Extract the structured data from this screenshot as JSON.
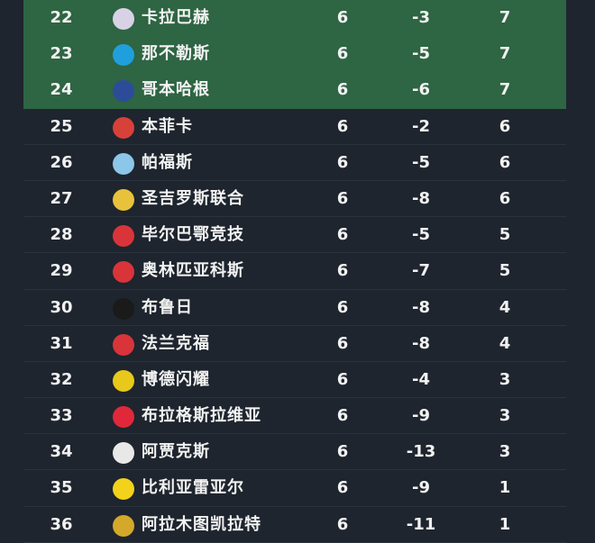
{
  "standings": [
    {
      "rank": "22",
      "team": "卡拉巴赫",
      "played": "6",
      "gd": "-3",
      "pts": "7",
      "highlight": true,
      "logo_color": "#d9d2e6",
      "logo_icon": "qarabag-crest-icon"
    },
    {
      "rank": "23",
      "team": "那不勒斯",
      "played": "6",
      "gd": "-5",
      "pts": "7",
      "highlight": true,
      "logo_color": "#1fa0dc",
      "logo_icon": "napoli-crest-icon"
    },
    {
      "rank": "24",
      "team": "哥本哈根",
      "played": "6",
      "gd": "-6",
      "pts": "7",
      "highlight": true,
      "logo_color": "#2c4c9a",
      "logo_icon": "copenhagen-crest-icon"
    },
    {
      "rank": "25",
      "team": "本菲卡",
      "played": "6",
      "gd": "-2",
      "pts": "6",
      "highlight": false,
      "logo_color": "#d8403a",
      "logo_icon": "benfica-crest-icon"
    },
    {
      "rank": "26",
      "team": "帕福斯",
      "played": "6",
      "gd": "-5",
      "pts": "6",
      "highlight": false,
      "logo_color": "#8cc6e8",
      "logo_icon": "pafos-crest-icon"
    },
    {
      "rank": "27",
      "team": "圣吉罗斯联合",
      "played": "6",
      "gd": "-8",
      "pts": "6",
      "highlight": false,
      "logo_color": "#e8c23a",
      "logo_icon": "union-sg-crest-icon"
    },
    {
      "rank": "28",
      "team": "毕尔巴鄂竞技",
      "played": "6",
      "gd": "-5",
      "pts": "5",
      "highlight": false,
      "logo_color": "#d8343a",
      "logo_icon": "athletic-crest-icon"
    },
    {
      "rank": "29",
      "team": "奥林匹亚科斯",
      "played": "6",
      "gd": "-7",
      "pts": "5",
      "highlight": false,
      "logo_color": "#d8343a",
      "logo_icon": "olympiacos-crest-icon"
    },
    {
      "rank": "30",
      "team": "布鲁日",
      "played": "6",
      "gd": "-8",
      "pts": "4",
      "highlight": false,
      "logo_color": "#1a1a1a",
      "logo_icon": "brugge-crest-icon"
    },
    {
      "rank": "31",
      "team": "法兰克福",
      "played": "6",
      "gd": "-8",
      "pts": "4",
      "highlight": false,
      "logo_color": "#d8343a",
      "logo_icon": "frankfurt-crest-icon"
    },
    {
      "rank": "32",
      "team": "博德闪耀",
      "played": "6",
      "gd": "-4",
      "pts": "3",
      "highlight": false,
      "logo_color": "#e8c81a",
      "logo_icon": "bodo-glimt-crest-icon"
    },
    {
      "rank": "33",
      "team": "布拉格斯拉维亚",
      "played": "6",
      "gd": "-9",
      "pts": "3",
      "highlight": false,
      "logo_color": "#e0283a",
      "logo_icon": "slavia-star-icon"
    },
    {
      "rank": "34",
      "team": "阿贾克斯",
      "played": "6",
      "gd": "-13",
      "pts": "3",
      "highlight": false,
      "logo_color": "#e8e8e8",
      "logo_icon": "ajax-crest-icon"
    },
    {
      "rank": "35",
      "team": "比利亚雷亚尔",
      "played": "6",
      "gd": "-9",
      "pts": "1",
      "highlight": false,
      "logo_color": "#f2d21a",
      "logo_icon": "villarreal-crest-icon"
    },
    {
      "rank": "36",
      "team": "阿拉木图凯拉特",
      "played": "6",
      "gd": "-11",
      "pts": "1",
      "highlight": false,
      "logo_color": "#d4a82a",
      "logo_icon": "kairat-crest-icon"
    }
  ],
  "colors": {
    "background": "#1e252e",
    "highlight": "#2e6543",
    "text": "#f2f2f2"
  }
}
